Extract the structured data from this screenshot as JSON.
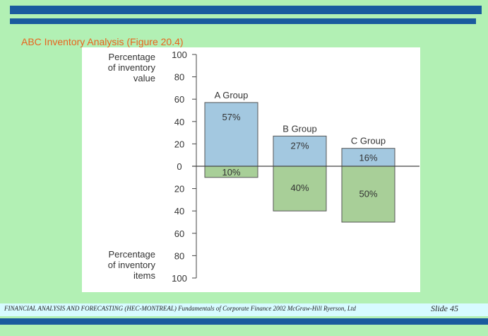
{
  "slide": {
    "title": "ABC Inventory Analysis (Figure 20.4)",
    "footer": "FINANCIAL ANALYSIS AND FORECASTING (HEC-MONTREAL)   Fundamentals of Corporate Finance 2002 McGraw-Hill Ryerson, Ltd",
    "slide_number": "Slide 45"
  },
  "colors": {
    "frame": "#1a5a9e",
    "background": "#b2f0b4",
    "title": "#e8641e",
    "value_bar": "#a3c8e0",
    "items_bar": "#a8cf98"
  },
  "chart_data": {
    "type": "bar",
    "title": "",
    "categories": [
      "A Group",
      "B Group",
      "C Group"
    ],
    "series": [
      {
        "name": "Percentage of inventory value",
        "values": [
          57,
          27,
          16
        ],
        "labels": [
          "57%",
          "27%",
          "16%"
        ]
      },
      {
        "name": "Percentage of inventory items",
        "values": [
          10,
          40,
          50
        ],
        "labels": [
          "10%",
          "40%",
          "50%"
        ]
      }
    ],
    "upper_axis_label": [
      "Percentage",
      "of inventory",
      "value"
    ],
    "lower_axis_label": [
      "Percentage",
      "of inventory",
      "items"
    ],
    "upper_ticks": [
      "100",
      "80",
      "60",
      "40",
      "20"
    ],
    "lower_ticks": [
      "20",
      "40",
      "60",
      "80",
      "100"
    ],
    "zero_tick": "0",
    "ylim_upper": [
      0,
      100
    ],
    "ylim_lower": [
      0,
      100
    ]
  }
}
